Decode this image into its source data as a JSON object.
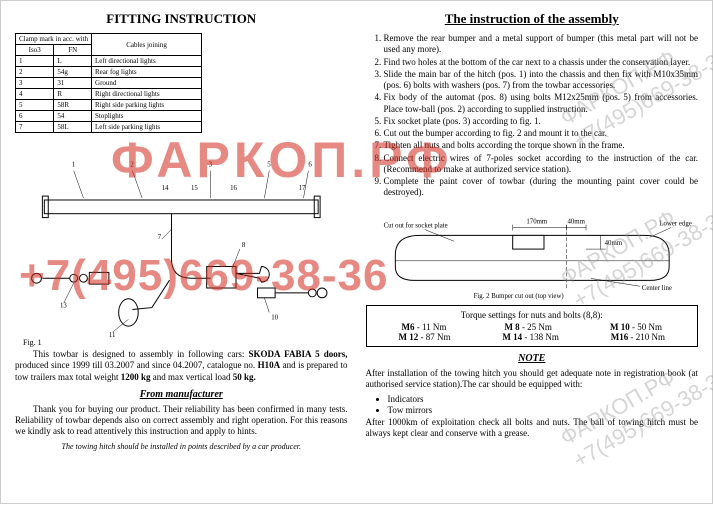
{
  "left": {
    "title": "FITTING INSTRUCTION",
    "clamp_header1": "Clamp mark in acc. with",
    "clamp_sub1": "Iso3",
    "clamp_sub2": "FN",
    "clamp_header2": "Cables joining",
    "rows": [
      {
        "a": "1",
        "b": "L",
        "c": "Left directional lights"
      },
      {
        "a": "2",
        "b": "54g",
        "c": "Rear fog lights"
      },
      {
        "a": "3",
        "b": "31",
        "c": "Ground"
      },
      {
        "a": "4",
        "b": "R",
        "c": "Right directional lights"
      },
      {
        "a": "5",
        "b": "58R",
        "c": "Right side parking lights"
      },
      {
        "a": "6",
        "b": "54",
        "c": "Stoplights"
      },
      {
        "a": "7",
        "b": "58L",
        "c": "Left side parking lights"
      }
    ],
    "fig1": "Fig. 1",
    "desc1a": "This towbar is designed to assembly in following cars: ",
    "desc1b": "SKODA FABIA 5 doors,",
    "desc1c": " produced since 1999 till 03.2007 and since 04.2007, catalogue no. ",
    "desc1d": "H10A",
    "desc1e": " and is prepared to tow trailers max total weight ",
    "desc1f": "1200 kg",
    "desc1g": " and max vertical load ",
    "desc1h": "50 kg.",
    "from_mfr": "From manufacturer",
    "thanks": "Thank you for buying our product. Their reliability has been confirmed in many tests. Reliability of towbar depends also on correct assembly and right operation. For this reasons we kindly ask to read attentively this instruction and apply to hints.",
    "footnote": "The towing hitch should be installed in points described by a car producer."
  },
  "right": {
    "title": "The instruction of the assembly",
    "steps": [
      "Remove the rear bumper and a metal support of bumper (this metal part will not be used any more).",
      "Find two holes at the bottom of the car next to a chassis under the conservation layer.",
      "Slide the main bar of the hitch (pos. 1) into the chassis and then fix with M10x35mm (pos. 6) bolts with washers (pos. 7) from the towbar accessories.",
      "Fix body of the automat (pos. 8) using bolts M12x25mm (pos. 5) from accessories. Place tow-ball (pos. 2) according to supplied instruction.",
      "Fix socket plate (pos. 3) according to fig. 1.",
      "Cut out the bumper according to fig. 2 and mount it to the car.",
      "Tighten all nuts and bolts according the torque shown in the frame.",
      "Connect electric wires of 7-poles socket according to the instruction of the car. (Recommend to make at authorized service station).",
      "Complete the paint cover of towbar (during the mounting paint cover could be destroyed)."
    ],
    "bumper_labels": {
      "cutout": "Cut out for socket plate",
      "d170": "170mm",
      "d40a": "40mm",
      "d40b": "40mm",
      "lower": "Lower edge",
      "center": "Center line",
      "fig2": "Fig. 2  Bumper cut out (top view)"
    },
    "torque_title": "Torque settings for nuts and bolts (8,8):",
    "torque": [
      {
        "l": "M6",
        "v": "- 11 Nm"
      },
      {
        "l": "M 8",
        "v": "- 25 Nm"
      },
      {
        "l": "M 10",
        "v": "- 50 Nm"
      },
      {
        "l": "M 12",
        "v": "- 87 Nm"
      },
      {
        "l": "M 14",
        "v": "- 138 Nm"
      },
      {
        "l": "M16",
        "v": "- 210 Nm"
      }
    ],
    "note_title": "NOTE",
    "note1": "After installation of the towing hitch you should get adequate note in registration book (at authorised service station).The car should be equipped with:",
    "note_bullets": [
      "Indicators",
      "Tow mirrors"
    ],
    "note2": "After 1000km of exploitation check all bolts and nuts. The ball of towing hitch must be always kept clear and conserve with a grease."
  },
  "watermark": {
    "brand": "ФАРКОП.РФ",
    "phone": "+7(495)669-38-36",
    "small": "фаркоп.рф\n669-38-36"
  },
  "diagram": {
    "callouts": [
      "1",
      "2",
      "3",
      "5",
      "6",
      "7",
      "8",
      "10",
      "11",
      "13",
      "14",
      "15",
      "16",
      "17"
    ]
  }
}
